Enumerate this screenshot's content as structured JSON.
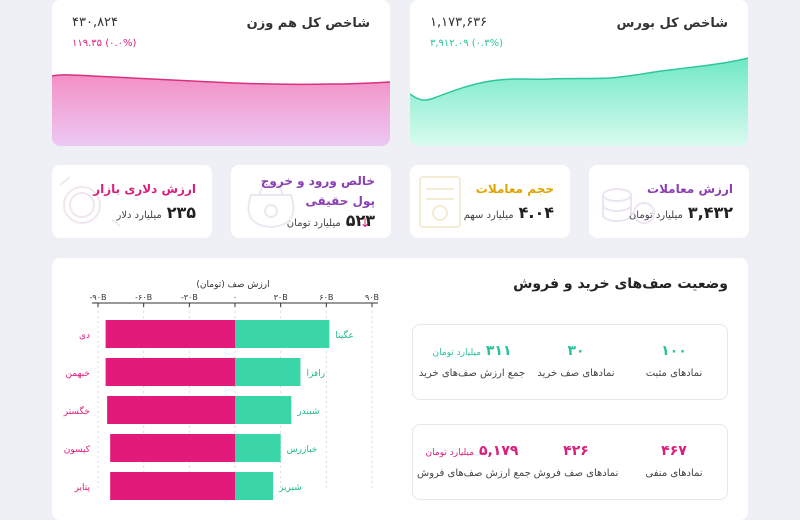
{
  "index_total": {
    "title": "شاخص کل بورس",
    "value": "۱,۱۷۳,۶۳۶",
    "change": "۳,۹۱۲.۰۹ (۰.۳%)",
    "change_color": "#29c39b"
  },
  "index_equal": {
    "title": "شاخص کل هم وزن",
    "value": "۴۳۰,۸۲۴",
    "change": "۱۱۹.۳۵ (۰.۰%)",
    "change_color": "#d91f7b"
  },
  "stats": [
    {
      "label": "ارزش معاملات",
      "value": "۳,۴۳۲",
      "unit": "میلیارد تومان",
      "label_color": "#8b3fb5"
    },
    {
      "label": "حجم معاملات",
      "value": "۴.۰۴",
      "unit": "میلیارد سهم",
      "label_color": "#e0a400"
    },
    {
      "label_line1": "خالص ورود و خروج",
      "label_line2": "پول حقیقی",
      "value": "۵۲۳",
      "unit": "میلیارد تومان",
      "arrow": "↓",
      "label_color": "#8b3fb5"
    },
    {
      "label": "ارزش دلاری بازار",
      "value": "۲۳۵",
      "unit": "میلیارد دلار",
      "label_color": "#d91f7b"
    }
  ],
  "queue": {
    "title": "وضعیت صف‌های خرید و فروش",
    "buy": {
      "positive_count": "۱۰۰",
      "positive_label": "نمادهای مثبت",
      "queue_count": "۳۰",
      "queue_label": "نمادهای صف خرید",
      "value": "۳۱۱",
      "value_unit": "میلیارد تومان",
      "value_label": "جمع ارزش صف‌های خرید"
    },
    "sell": {
      "negative_count": "۴۶۷",
      "negative_label": "نمادهای منفی",
      "queue_count": "۴۲۶",
      "queue_label": "نمادهای صف فروش",
      "value": "۵,۱۷۹",
      "value_unit": "میلیارد تومان",
      "value_label": "جمع ارزش صف‌های فروش"
    }
  },
  "chart_data": {
    "type": "bar",
    "title": "ارزش صف (تومان)",
    "xlim": [
      -90,
      90
    ],
    "x_ticks": [
      "-۹۰B",
      "-۶۰B",
      "-۳۰B",
      "۰",
      "۳۰B",
      "۶۰B",
      "۹۰B"
    ],
    "x_tick_values": [
      -90,
      -60,
      -30,
      0,
      30,
      60,
      90
    ],
    "buy_color": "#3ad6a8",
    "sell_color": "#e21b7a",
    "rows": [
      {
        "sell_symbol": "دی",
        "sell_value": -85,
        "buy_symbol": "عگیتا",
        "buy_value": 62
      },
      {
        "sell_symbol": "خبهمن",
        "sell_value": -85,
        "buy_symbol": "رافزا",
        "buy_value": 43
      },
      {
        "sell_symbol": "خگستر",
        "sell_value": -84,
        "buy_symbol": "شبندر",
        "buy_value": 37
      },
      {
        "sell_symbol": "کیسون",
        "sell_value": -82,
        "buy_symbol": "خبازرس",
        "buy_value": 30
      },
      {
        "sell_symbol": "پتایر",
        "sell_value": -82,
        "buy_symbol": "شبریز",
        "buy_value": 25
      }
    ]
  }
}
